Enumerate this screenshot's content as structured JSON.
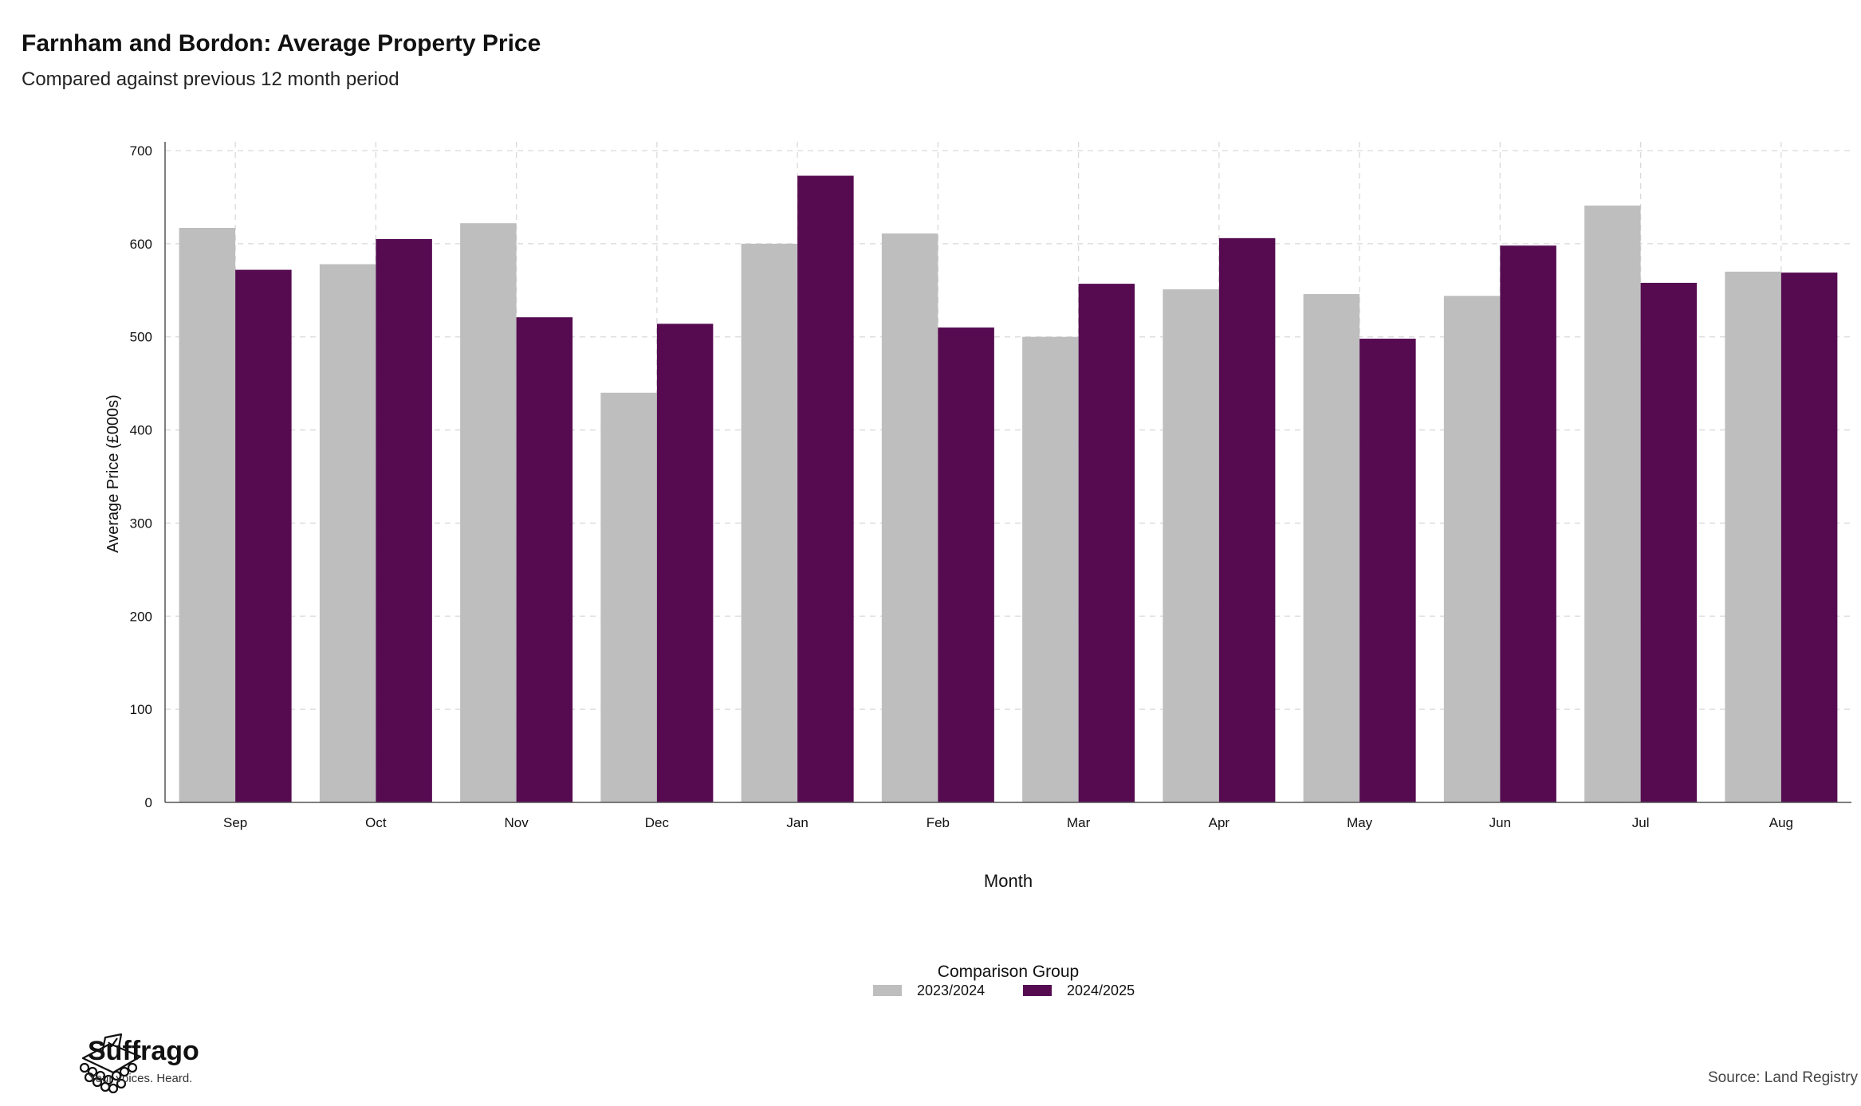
{
  "header": {
    "title": "Farnham and Bordon: Average Property Price",
    "subtitle": "Compared against previous 12 month period"
  },
  "footer": {
    "brand_name": "Suffrago",
    "brand_tagline": "Your voices. Heard.",
    "source": "Source: Land Registry"
  },
  "chart_data": {
    "type": "bar",
    "title": "Farnham and Bordon: Average Property Price",
    "subtitle": "Compared against previous 12 month period",
    "xlabel": "Month",
    "ylabel": "Average Price (£000s)",
    "ylim": [
      0,
      700
    ],
    "yticks": [
      0,
      100,
      200,
      300,
      400,
      500,
      600,
      700
    ],
    "grid": true,
    "legend_title": "Comparison Group",
    "legend_position": "bottom-center",
    "categories": [
      "Sep",
      "Oct",
      "Nov",
      "Dec",
      "Jan",
      "Feb",
      "Mar",
      "Apr",
      "May",
      "Jun",
      "Jul",
      "Aug"
    ],
    "series": [
      {
        "name": "2023/2024",
        "color": "#bebebe",
        "values": [
          617,
          578,
          622,
          440,
          600,
          611,
          500,
          551,
          546,
          544,
          641,
          570
        ]
      },
      {
        "name": "2024/2025",
        "color": "#560b51",
        "values": [
          572,
          605,
          521,
          514,
          673,
          510,
          557,
          606,
          498,
          598,
          558,
          569
        ]
      }
    ]
  }
}
